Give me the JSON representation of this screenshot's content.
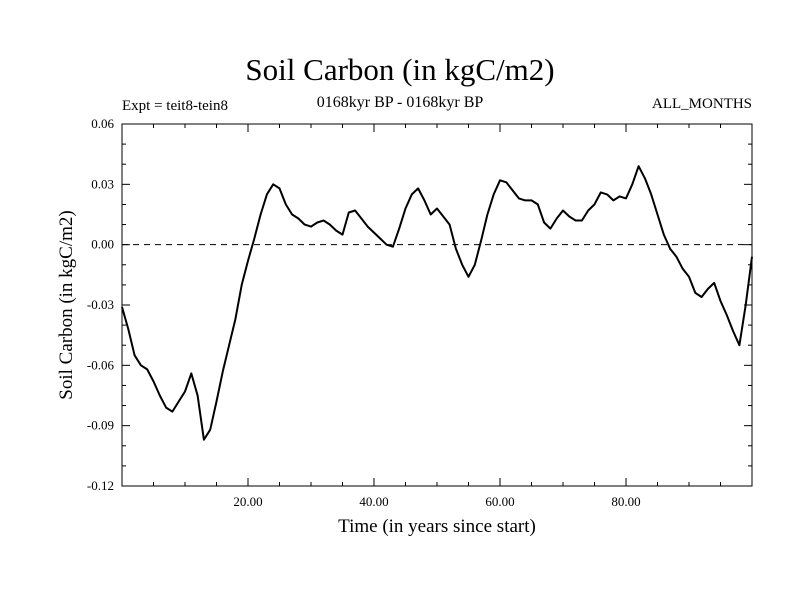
{
  "chart_data": {
    "type": "line",
    "title": "Soil Carbon (in kgC/m2)",
    "subtitle": "0168kyr BP - 0168kyr BP",
    "left_annotation": "Expt = teit8-tein8",
    "right_annotation": "ALL_MONTHS",
    "xlabel": "Time (in years since start)",
    "ylabel": "Soil Carbon (in kgC/m2)",
    "xlim": [
      0,
      100
    ],
    "ylim": [
      -0.12,
      0.06
    ],
    "xticks": [
      20,
      40,
      60,
      80
    ],
    "xtick_labels": [
      "20.00",
      "40.00",
      "60.00",
      "80.00"
    ],
    "yticks": [
      -0.12,
      -0.09,
      -0.06,
      -0.03,
      0.0,
      0.03,
      0.06
    ],
    "ytick_labels": [
      "-0.12",
      "-0.09",
      "-0.06",
      "-0.03",
      "0.00",
      "0.03",
      "0.06"
    ],
    "reference_line": 0.0,
    "colors": {
      "line": "#000000",
      "frame": "#000000"
    },
    "series": [
      {
        "name": "Soil Carbon",
        "x": [
          0,
          1,
          2,
          3,
          4,
          5,
          6,
          7,
          8,
          9,
          10,
          11,
          12,
          13,
          14,
          15,
          16,
          17,
          18,
          19,
          20,
          21,
          22,
          23,
          24,
          25,
          26,
          27,
          28,
          29,
          30,
          31,
          32,
          33,
          34,
          35,
          36,
          37,
          38,
          39,
          40,
          41,
          42,
          43,
          44,
          45,
          46,
          47,
          48,
          49,
          50,
          51,
          52,
          53,
          54,
          55,
          56,
          57,
          58,
          59,
          60,
          61,
          62,
          63,
          64,
          65,
          66,
          67,
          68,
          69,
          70,
          71,
          72,
          73,
          74,
          75,
          76,
          77,
          78,
          79,
          80,
          81,
          82,
          83,
          84,
          85,
          86,
          87,
          88,
          89,
          90,
          91,
          92,
          93,
          94,
          95,
          96,
          97,
          98,
          99,
          100
        ],
        "values": [
          -0.031,
          -0.042,
          -0.055,
          -0.06,
          -0.062,
          -0.068,
          -0.075,
          -0.081,
          -0.083,
          -0.078,
          -0.073,
          -0.064,
          -0.075,
          -0.097,
          -0.092,
          -0.078,
          -0.063,
          -0.05,
          -0.037,
          -0.02,
          -0.008,
          0.003,
          0.015,
          0.025,
          0.03,
          0.028,
          0.02,
          0.015,
          0.013,
          0.01,
          0.009,
          0.011,
          0.012,
          0.01,
          0.007,
          0.005,
          0.016,
          0.017,
          0.013,
          0.009,
          0.006,
          0.003,
          0.0,
          -0.001,
          0.008,
          0.018,
          0.025,
          0.028,
          0.022,
          0.015,
          0.018,
          0.014,
          0.01,
          -0.002,
          -0.01,
          -0.016,
          -0.01,
          0.002,
          0.015,
          0.025,
          0.032,
          0.031,
          0.027,
          0.023,
          0.022,
          0.022,
          0.02,
          0.011,
          0.008,
          0.013,
          0.017,
          0.014,
          0.012,
          0.012,
          0.017,
          0.02,
          0.026,
          0.025,
          0.022,
          0.024,
          0.023,
          0.03,
          0.039,
          0.033,
          0.025,
          0.015,
          0.005,
          -0.002,
          -0.006,
          -0.012,
          -0.016,
          -0.024,
          -0.026,
          -0.022,
          -0.019,
          -0.028,
          -0.035,
          -0.043,
          -0.05,
          -0.03,
          -0.006
        ]
      }
    ]
  }
}
